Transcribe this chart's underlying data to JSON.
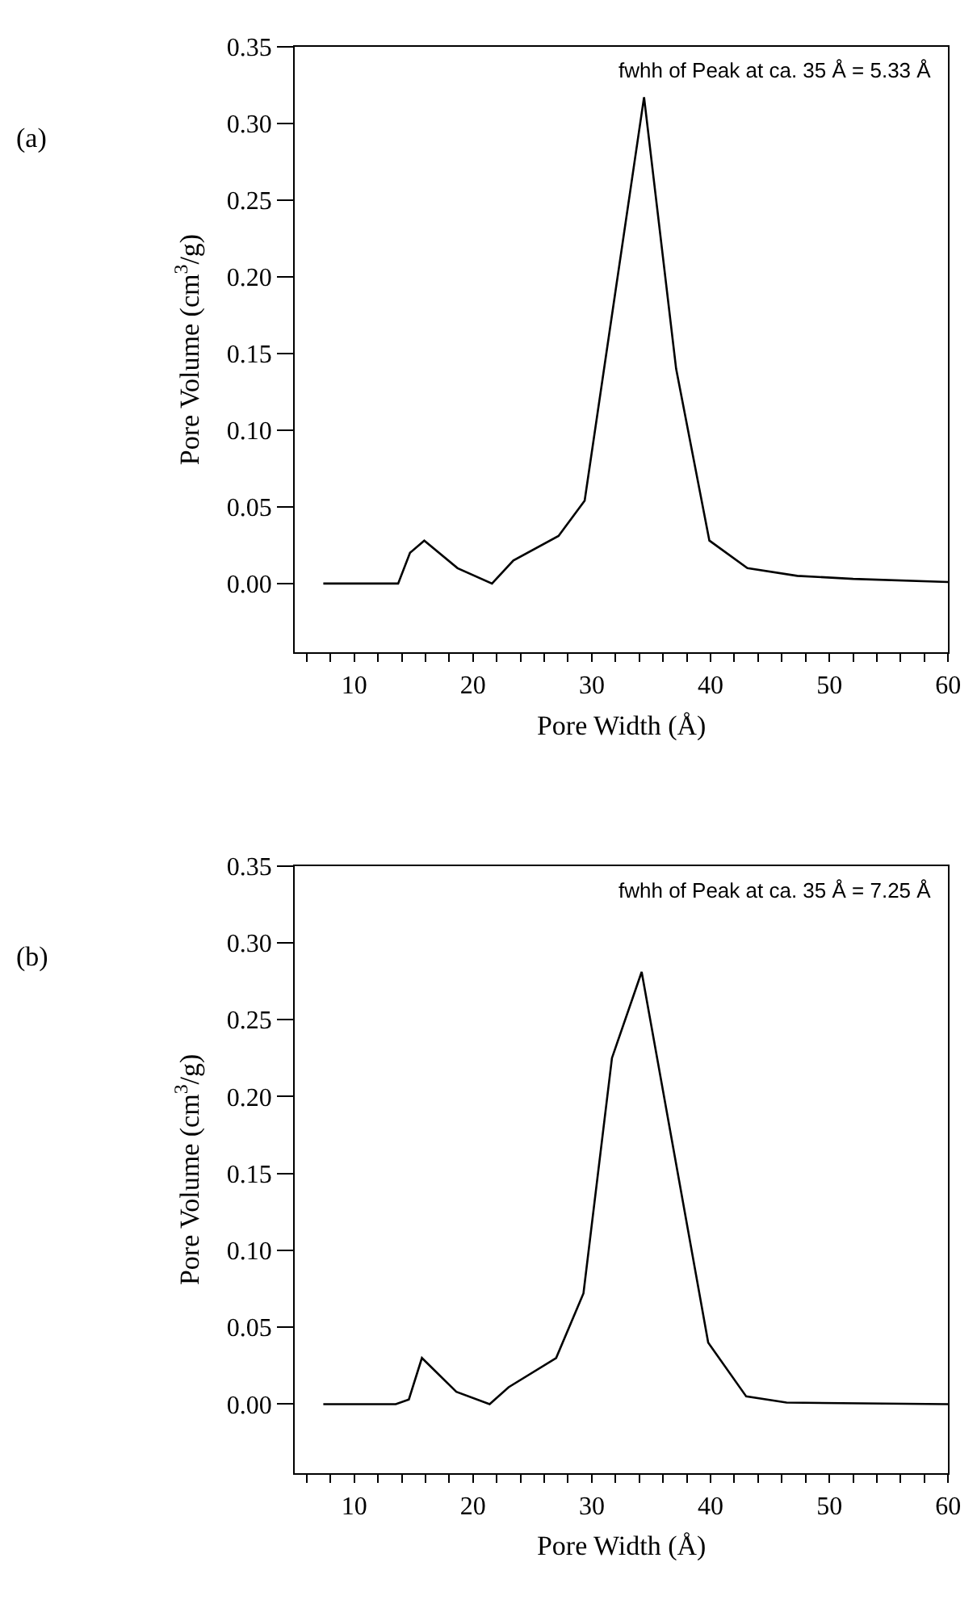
{
  "chart_data": [
    {
      "type": "line",
      "xlabel": "Pore Width (Å)",
      "ylabel": "Pore Volume (cm$^{3}$/g)",
      "annotations": [
        "fwhh of Peak at ca. 35 Å = 5.33 Å",
        "(a)"
      ],
      "x": [
        7.4,
        13.7,
        14.7,
        15.9,
        18.7,
        21.6,
        23.4,
        27.2,
        29.4,
        34.4,
        37.1,
        39.9,
        43.1,
        47.3,
        52,
        60
      ],
      "series": [
        {
          "color": "#000000",
          "values": [
            0.0,
            0.0,
            0.02,
            0.028,
            0.01,
            0.0,
            0.015,
            0.031,
            0.054,
            0.317,
            0.14,
            0.028,
            0.01,
            0.005,
            0.003,
            0.001
          ]
        }
      ],
      "xlim": [
        5,
        60
      ],
      "ylim": [
        -0.045,
        0.35
      ],
      "xticks": [
        {
          "value": 6,
          "label": null
        },
        {
          "value": 8,
          "label": null
        },
        10,
        {
          "value": 12,
          "label": null
        },
        {
          "value": 14,
          "label": null
        },
        {
          "value": 16,
          "label": null
        },
        {
          "value": 18,
          "label": null
        },
        20,
        {
          "value": 22,
          "label": null
        },
        {
          "value": 24,
          "label": null
        },
        {
          "value": 26,
          "label": null
        },
        {
          "value": 28,
          "label": null
        },
        30,
        {
          "value": 32,
          "label": null
        },
        {
          "value": 34,
          "label": null
        },
        {
          "value": 36,
          "label": null
        },
        {
          "value": 38,
          "label": null
        },
        40,
        {
          "value": 42,
          "label": null
        },
        {
          "value": 44,
          "label": null
        },
        {
          "value": 46,
          "label": null
        },
        {
          "value": 48,
          "label": null
        },
        50,
        {
          "value": 52,
          "label": null
        },
        {
          "value": 54,
          "label": null
        },
        {
          "value": 56,
          "label": null
        },
        {
          "value": 58,
          "label": null
        },
        60
      ],
      "yticks": [
        {
          "value": 0,
          "label": "0.00"
        },
        0.05,
        {
          "value": 0.1,
          "label": "0.10"
        },
        0.15,
        {
          "value": 0.2,
          "label": "0.20"
        },
        0.25,
        {
          "value": 0.3,
          "label": "0.30"
        },
        0.35
      ],
      "marker": "none",
      "line_style": "solid"
    },
    {
      "type": "line",
      "xlabel": "Pore Width (Å)",
      "ylabel": "Pore Volume (cm$^{3}$/g)",
      "annotations": [
        "fwhh of Peak at ca. 35 Å = 7.25 Å",
        "(b)"
      ],
      "x": [
        7.4,
        13.5,
        14.6,
        15.7,
        18.6,
        21.4,
        23.0,
        27.0,
        29.3,
        31.7,
        34.2,
        39.8,
        43.0,
        46.4,
        60
      ],
      "series": [
        {
          "color": "#000000",
          "values": [
            0.0,
            0.0,
            0.003,
            0.03,
            0.008,
            0.0,
            0.011,
            0.03,
            0.072,
            0.225,
            0.281,
            0.04,
            0.005,
            0.001,
            0.0
          ]
        }
      ],
      "xlim": [
        5,
        60
      ],
      "ylim": [
        -0.045,
        0.35
      ],
      "xticks": [
        {
          "value": 6,
          "label": null
        },
        {
          "value": 8,
          "label": null
        },
        10,
        {
          "value": 12,
          "label": null
        },
        {
          "value": 14,
          "label": null
        },
        {
          "value": 16,
          "label": null
        },
        {
          "value": 18,
          "label": null
        },
        20,
        {
          "value": 22,
          "label": null
        },
        {
          "value": 24,
          "label": null
        },
        {
          "value": 26,
          "label": null
        },
        {
          "value": 28,
          "label": null
        },
        30,
        {
          "value": 32,
          "label": null
        },
        {
          "value": 34,
          "label": null
        },
        {
          "value": 36,
          "label": null
        },
        {
          "value": 38,
          "label": null
        },
        40,
        {
          "value": 42,
          "label": null
        },
        {
          "value": 44,
          "label": null
        },
        {
          "value": 46,
          "label": null
        },
        {
          "value": 48,
          "label": null
        },
        50,
        {
          "value": 52,
          "label": null
        },
        {
          "value": 54,
          "label": null
        },
        {
          "value": 56,
          "label": null
        },
        {
          "value": 58,
          "label": null
        },
        60
      ],
      "yticks": [
        {
          "value": 0,
          "label": "0.00"
        },
        0.05,
        {
          "value": 0.1,
          "label": "0.10"
        },
        0.15,
        {
          "value": 0.2,
          "label": "0.20"
        },
        0.25,
        {
          "value": 0.3,
          "label": "0.30"
        },
        0.35
      ],
      "marker": "none",
      "line_style": "solid"
    }
  ]
}
